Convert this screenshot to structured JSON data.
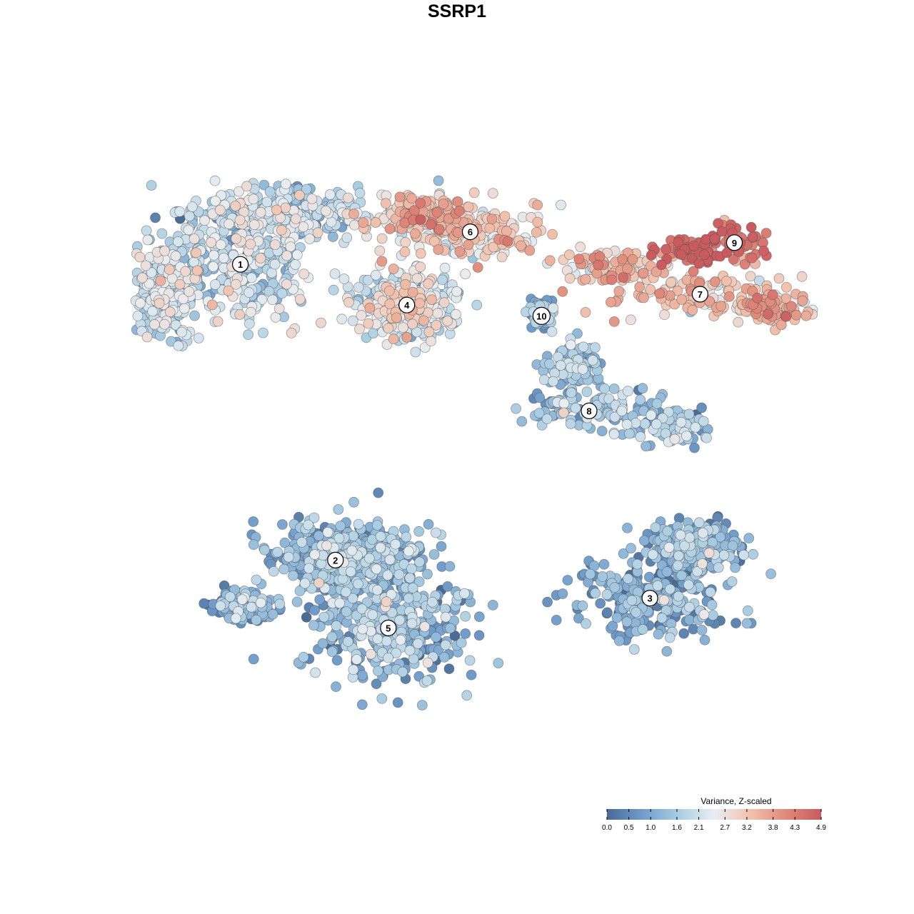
{
  "chart_data": {
    "type": "scatter",
    "title": "SSRP1",
    "legend": {
      "title": "Variance, Z-scaled",
      "ticks": [
        "0.0",
        "0.5",
        "1.0",
        "1.6",
        "2.1",
        "2.7",
        "3.2",
        "3.8",
        "4.3",
        "4.9"
      ],
      "tick_values": [
        0.0,
        0.5,
        1.0,
        1.6,
        2.1,
        2.7,
        3.2,
        3.8,
        4.3,
        4.9
      ],
      "range": [
        0.0,
        4.9
      ],
      "placement": "bottom-right",
      "colors": [
        "#4a6b94",
        "#6f9ccb",
        "#a9cde2",
        "#e8eef2",
        "#f2c3ae",
        "#e08a7a",
        "#c95a5e"
      ]
    },
    "axes_visible": false,
    "grid": false,
    "clusters": [
      {
        "label": "1",
        "x": -8.2,
        "y": 7.1,
        "mean_value": 1.9,
        "n_cells": 900
      },
      {
        "label": "2",
        "x": -4.6,
        "y": -3.8,
        "mean_value": 1.0,
        "n_cells": 260
      },
      {
        "label": "3",
        "x": 7.3,
        "y": -5.2,
        "mean_value": 1.1,
        "n_cells": 520
      },
      {
        "label": "4",
        "x": -1.9,
        "y": 5.6,
        "mean_value": 2.2,
        "n_cells": 360
      },
      {
        "label": "5",
        "x": -2.6,
        "y": -6.3,
        "mean_value": 1.3,
        "n_cells": 750
      },
      {
        "label": "6",
        "x": 0.5,
        "y": 8.3,
        "mean_value": 3.0,
        "n_cells": 380
      },
      {
        "label": "7",
        "x": 9.2,
        "y": 6.0,
        "mean_value": 3.2,
        "n_cells": 330
      },
      {
        "label": "8",
        "x": 5.0,
        "y": 1.7,
        "mean_value": 1.4,
        "n_cells": 310
      },
      {
        "label": "9",
        "x": 10.5,
        "y": 7.9,
        "mean_value": 4.5,
        "n_cells": 120
      },
      {
        "label": "10",
        "x": 3.2,
        "y": 5.2,
        "mean_value": 1.2,
        "n_cells": 60
      }
    ]
  }
}
